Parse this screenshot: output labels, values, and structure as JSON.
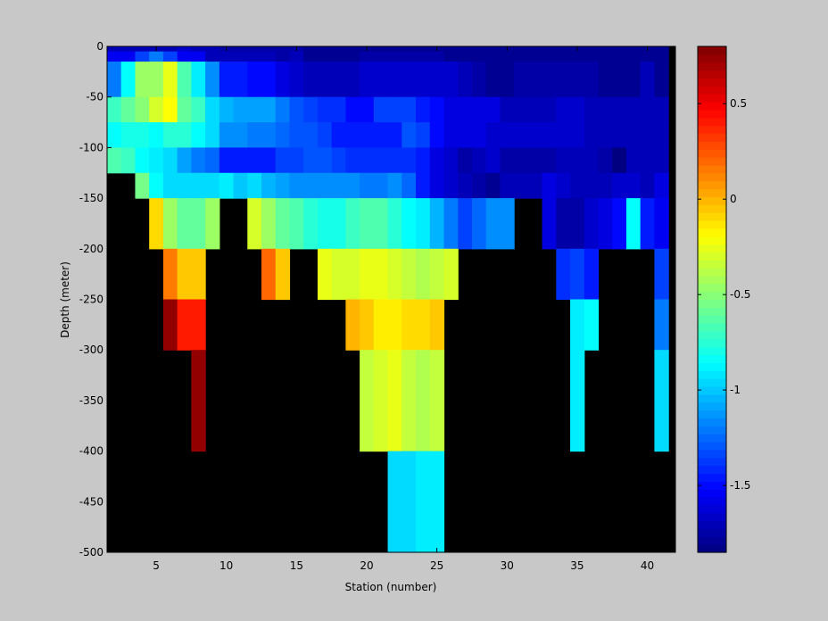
{
  "chart_data": {
    "type": "heatmap",
    "title": "",
    "xlabel": "Station (number)",
    "ylabel": "Depth (meter)",
    "xlim": [
      1.5,
      42.0
    ],
    "ylim": [
      -500,
      0
    ],
    "x_ticks": [
      "5",
      "10",
      "15",
      "20",
      "25",
      "30",
      "35",
      "40"
    ],
    "y_ticks": [
      "0",
      "-50",
      "-100",
      "-150",
      "-200",
      "-250",
      "-300",
      "-350",
      "-400",
      "-450",
      "-500"
    ],
    "background_color": "#000000",
    "colorbar": {
      "range": [
        -1.85,
        0.8
      ],
      "tick_labels": [
        "0.5",
        "0",
        "-0.5",
        "-1",
        "-1.5"
      ],
      "colormap": "jet"
    },
    "x": [
      2,
      3,
      4,
      5,
      6,
      7,
      8,
      9,
      10,
      11,
      12,
      13,
      14,
      15,
      16,
      17,
      18,
      19,
      20,
      21,
      22,
      23,
      24,
      25,
      26,
      27,
      28,
      29,
      30,
      31,
      32,
      33,
      34,
      35,
      36,
      37,
      38,
      39,
      40,
      41
    ],
    "depth_rows": [
      {
        "depth": [
          -5,
          0
        ],
        "values": [
          -1.7,
          -1.7,
          -1.7,
          -1.7,
          -1.7,
          -1.65,
          -1.7,
          -1.7,
          -1.75,
          -1.75,
          -1.75,
          -1.75,
          -1.75,
          -1.75,
          -1.8,
          -1.8,
          -1.8,
          -1.8,
          -1.8,
          -1.8,
          -1.8,
          -1.8,
          -1.8,
          -1.8,
          -1.8,
          -1.8,
          -1.8,
          -1.8,
          -1.8,
          -1.8,
          -1.8,
          -1.8,
          -1.8,
          -1.8,
          -1.8,
          -1.8,
          -1.8,
          -1.8,
          -1.8,
          -1.8
        ]
      },
      {
        "depth": [
          -15,
          -5
        ],
        "values": [
          -1.55,
          -1.55,
          -1.35,
          -1.2,
          -1.35,
          -1.55,
          -1.55,
          -1.7,
          -1.7,
          -1.7,
          -1.7,
          -1.7,
          -1.75,
          -1.7,
          -1.8,
          -1.8,
          -1.8,
          -1.8,
          -1.75,
          -1.75,
          -1.75,
          -1.75,
          -1.75,
          -1.75,
          -1.8,
          -1.8,
          -1.8,
          -1.8,
          -1.8,
          -1.8,
          -1.8,
          -1.8,
          -1.8,
          -1.8,
          -1.8,
          -1.8,
          -1.8,
          -1.8,
          -1.8,
          -1.8
        ]
      },
      {
        "depth": [
          -50,
          -15
        ],
        "values": [
          -1.2,
          -0.85,
          -0.45,
          -0.45,
          -0.25,
          -0.65,
          -0.9,
          -1.15,
          -1.45,
          -1.45,
          -1.5,
          -1.5,
          -1.6,
          -1.65,
          -1.7,
          -1.7,
          -1.7,
          -1.7,
          -1.65,
          -1.65,
          -1.65,
          -1.65,
          -1.65,
          -1.65,
          -1.65,
          -1.7,
          -1.75,
          -1.8,
          -1.8,
          -1.75,
          -1.75,
          -1.75,
          -1.75,
          -1.75,
          -1.75,
          -1.8,
          -1.8,
          -1.8,
          -1.7,
          -1.8
        ]
      },
      {
        "depth": [
          -75,
          -50
        ],
        "values": [
          -0.7,
          -0.6,
          -0.5,
          -0.3,
          -0.2,
          -0.6,
          -0.7,
          -0.95,
          -1.05,
          -1.1,
          -1.1,
          -1.1,
          -1.2,
          -1.3,
          -1.35,
          -1.4,
          -1.4,
          -1.5,
          -1.5,
          -1.35,
          -1.35,
          -1.35,
          -1.45,
          -1.5,
          -1.6,
          -1.6,
          -1.6,
          -1.6,
          -1.7,
          -1.7,
          -1.7,
          -1.7,
          -1.65,
          -1.65,
          -1.7,
          -1.7,
          -1.7,
          -1.7,
          -1.7,
          -1.7
        ]
      },
      {
        "depth": [
          -100,
          -75
        ],
        "values": [
          -0.85,
          -0.8,
          -0.8,
          -0.85,
          -0.75,
          -0.75,
          -0.85,
          -0.95,
          -1.15,
          -1.15,
          -1.2,
          -1.2,
          -1.25,
          -1.3,
          -1.3,
          -1.35,
          -1.45,
          -1.45,
          -1.45,
          -1.45,
          -1.45,
          -1.3,
          -1.35,
          -1.5,
          -1.6,
          -1.6,
          -1.6,
          -1.65,
          -1.65,
          -1.65,
          -1.65,
          -1.65,
          -1.65,
          -1.65,
          -1.7,
          -1.7,
          -1.7,
          -1.7,
          -1.7,
          -1.7
        ]
      },
      {
        "depth": [
          -125,
          -100
        ],
        "values": [
          -0.65,
          -0.7,
          -0.85,
          -0.9,
          -0.95,
          -1.1,
          -1.2,
          -1.25,
          -1.45,
          -1.45,
          -1.45,
          -1.45,
          -1.35,
          -1.35,
          -1.3,
          -1.3,
          -1.35,
          -1.4,
          -1.4,
          -1.4,
          -1.4,
          -1.4,
          -1.45,
          -1.6,
          -1.65,
          -1.75,
          -1.7,
          -1.65,
          -1.75,
          -1.75,
          -1.75,
          -1.75,
          -1.7,
          -1.7,
          -1.7,
          -1.75,
          -1.85,
          -1.7,
          -1.7,
          -1.7
        ]
      },
      {
        "depth": [
          -150,
          -125
        ],
        "values": [
          null,
          null,
          -0.55,
          -0.85,
          -0.95,
          -0.95,
          -0.95,
          -0.95,
          -0.9,
          -1.0,
          -0.95,
          -1.05,
          -1.1,
          -1.15,
          -1.15,
          -1.15,
          -1.15,
          -1.15,
          -1.2,
          -1.2,
          -1.15,
          -1.25,
          -1.45,
          -1.6,
          -1.65,
          -1.7,
          -1.75,
          -1.8,
          -1.7,
          -1.7,
          -1.7,
          -1.6,
          -1.65,
          -1.7,
          -1.7,
          -1.7,
          -1.65,
          -1.65,
          -1.7,
          -1.6
        ]
      },
      {
        "depth": [
          -200,
          -150
        ],
        "values": [
          null,
          null,
          null,
          -0.1,
          -0.45,
          -0.6,
          -0.6,
          -0.45,
          null,
          null,
          -0.3,
          -0.45,
          -0.6,
          -0.65,
          -0.75,
          -0.8,
          -0.8,
          -0.7,
          -0.65,
          -0.65,
          -0.75,
          -0.85,
          -0.9,
          -1.05,
          -1.2,
          -1.35,
          -1.25,
          -1.15,
          -1.15,
          null,
          null,
          -1.6,
          -1.75,
          -1.75,
          -1.65,
          -1.6,
          -1.5,
          -0.85,
          -1.45,
          -1.55
        ]
      },
      {
        "depth": [
          -250,
          -200
        ],
        "values": [
          null,
          null,
          null,
          null,
          0.15,
          -0.05,
          -0.05,
          null,
          null,
          null,
          null,
          0.2,
          -0.05,
          null,
          null,
          -0.25,
          -0.3,
          -0.3,
          -0.25,
          -0.25,
          -0.3,
          -0.35,
          -0.4,
          -0.35,
          -0.3,
          null,
          null,
          null,
          null,
          null,
          null,
          null,
          -1.4,
          -1.35,
          -1.45,
          null,
          null,
          null,
          null,
          -1.35
        ]
      },
      {
        "depth": [
          -300,
          -250
        ],
        "values": [
          null,
          null,
          null,
          null,
          0.75,
          0.4,
          0.4,
          null,
          null,
          null,
          null,
          null,
          null,
          null,
          null,
          null,
          null,
          0.0,
          -0.05,
          -0.15,
          -0.15,
          -0.1,
          -0.1,
          -0.05,
          null,
          null,
          null,
          null,
          null,
          null,
          null,
          null,
          null,
          -0.9,
          -0.85,
          null,
          null,
          null,
          null,
          -1.2
        ]
      },
      {
        "depth": [
          -400,
          -300
        ],
        "values": [
          null,
          null,
          null,
          null,
          null,
          null,
          0.75,
          null,
          null,
          null,
          null,
          null,
          null,
          null,
          null,
          null,
          null,
          null,
          -0.35,
          -0.3,
          -0.25,
          -0.35,
          -0.4,
          -0.35,
          null,
          null,
          null,
          null,
          null,
          null,
          null,
          null,
          null,
          -0.9,
          null,
          null,
          null,
          null,
          null,
          -0.95
        ]
      },
      {
        "depth": [
          -500,
          -400
        ],
        "values": [
          null,
          null,
          null,
          null,
          null,
          null,
          null,
          null,
          null,
          null,
          null,
          null,
          null,
          null,
          null,
          null,
          null,
          null,
          null,
          null,
          -0.95,
          -0.95,
          -0.9,
          -0.9,
          null,
          null,
          null,
          null,
          null,
          null,
          null,
          null,
          null,
          null,
          null,
          null,
          null,
          null,
          null,
          null
        ]
      }
    ]
  }
}
